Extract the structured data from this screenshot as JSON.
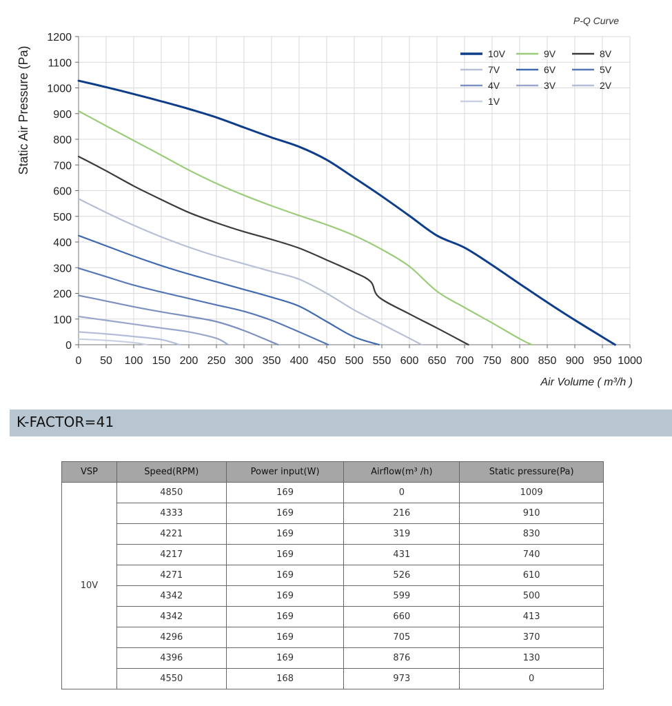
{
  "chart_data": {
    "type": "line",
    "title": "P-Q Curve",
    "xlabel": "Air Volume ( m³/h )",
    "ylabel": "Static Air Pressure  (Pa)",
    "xlim": [
      0,
      1000
    ],
    "ylim": [
      0,
      1200
    ],
    "x_ticks": [
      "0",
      "50",
      "100",
      "150",
      "200",
      "250",
      "300",
      "350",
      "400",
      "450",
      "500",
      "550",
      "600",
      "650",
      "700",
      "750",
      "800",
      "850",
      "900",
      "950",
      "1000"
    ],
    "y_ticks": [
      "0",
      "100",
      "200",
      "300",
      "400",
      "500",
      "600",
      "700",
      "800",
      "900",
      "1000",
      "1100",
      "1200"
    ],
    "grid": true,
    "legend_position": "top-right",
    "series": [
      {
        "name": "10V",
        "color": "#0e3d8a",
        "x": [
          0,
          50,
          100,
          150,
          200,
          250,
          300,
          350,
          400,
          450,
          500,
          550,
          600,
          650,
          700,
          750,
          800,
          850,
          900,
          973
        ],
        "y": [
          1028,
          1003,
          976,
          948,
          918,
          885,
          846,
          807,
          771,
          720,
          650,
          578,
          502,
          425,
          378,
          310,
          237,
          165,
          96,
          0
        ]
      },
      {
        "name": "9V",
        "color": "#9bcc7a",
        "x": [
          0,
          50,
          100,
          150,
          200,
          250,
          300,
          350,
          400,
          450,
          500,
          550,
          600,
          650,
          700,
          750,
          800,
          822
        ],
        "y": [
          910,
          852,
          795,
          738,
          680,
          628,
          582,
          541,
          503,
          467,
          425,
          371,
          305,
          208,
          145,
          85,
          23,
          0
        ]
      },
      {
        "name": "8V",
        "color": "#3a3a3a",
        "x": [
          0,
          50,
          100,
          150,
          200,
          250,
          300,
          350,
          400,
          450,
          500,
          530,
          545,
          600,
          650,
          707
        ],
        "y": [
          733,
          677,
          618,
          565,
          515,
          475,
          440,
          410,
          376,
          330,
          282,
          245,
          185,
          120,
          65,
          0
        ]
      },
      {
        "name": "7V",
        "color": "#b6bfd6",
        "x": [
          0,
          50,
          100,
          150,
          200,
          250,
          300,
          350,
          400,
          450,
          500,
          550,
          600,
          622
        ],
        "y": [
          568,
          515,
          465,
          420,
          380,
          345,
          315,
          285,
          255,
          200,
          135,
          80,
          25,
          0
        ]
      },
      {
        "name": "6V",
        "color": "#3f69b0",
        "x": [
          0,
          50,
          100,
          150,
          200,
          250,
          300,
          350,
          400,
          450,
          500,
          545
        ],
        "y": [
          425,
          385,
          345,
          308,
          275,
          245,
          215,
          185,
          150,
          90,
          30,
          0
        ]
      },
      {
        "name": "5V",
        "color": "#5677b5",
        "x": [
          0,
          50,
          100,
          150,
          200,
          250,
          300,
          350,
          400,
          453
        ],
        "y": [
          298,
          265,
          232,
          205,
          180,
          155,
          130,
          95,
          50,
          0
        ]
      },
      {
        "name": "4V",
        "color": "#7c90c0",
        "x": [
          0,
          50,
          100,
          150,
          200,
          250,
          300,
          362
        ],
        "y": [
          192,
          170,
          148,
          128,
          110,
          90,
          55,
          0
        ]
      },
      {
        "name": "3V",
        "color": "#9aa6cb",
        "x": [
          0,
          50,
          100,
          150,
          200,
          250,
          271
        ],
        "y": [
          110,
          95,
          80,
          65,
          50,
          25,
          0
        ]
      },
      {
        "name": "2V",
        "color": "#b3bcd8",
        "x": [
          0,
          50,
          100,
          150,
          183
        ],
        "y": [
          50,
          42,
          32,
          20,
          0
        ]
      },
      {
        "name": "1V",
        "color": "#c9cfe2",
        "x": [
          0,
          50,
          100,
          124
        ],
        "y": [
          22,
          17,
          8,
          0
        ]
      }
    ]
  },
  "kfactor": "K-FACTOR=41",
  "table": {
    "headers": [
      "VSP",
      "Speed(RPM)",
      "Power input(W)",
      "Airflow(m³ /h)",
      "Static pressure(Pa)"
    ],
    "vsp": "10V",
    "rows": [
      [
        "4850",
        "169",
        "0",
        "1009"
      ],
      [
        "4333",
        "169",
        "216",
        "910"
      ],
      [
        "4221",
        "169",
        "319",
        "830"
      ],
      [
        "4217",
        "169",
        "431",
        "740"
      ],
      [
        "4271",
        "169",
        "526",
        "610"
      ],
      [
        "4342",
        "169",
        "599",
        "500"
      ],
      [
        "4342",
        "169",
        "660",
        "413"
      ],
      [
        "4296",
        "169",
        "705",
        "370"
      ],
      [
        "4396",
        "169",
        "876",
        "130"
      ],
      [
        "4550",
        "168",
        "973",
        "0"
      ]
    ]
  }
}
